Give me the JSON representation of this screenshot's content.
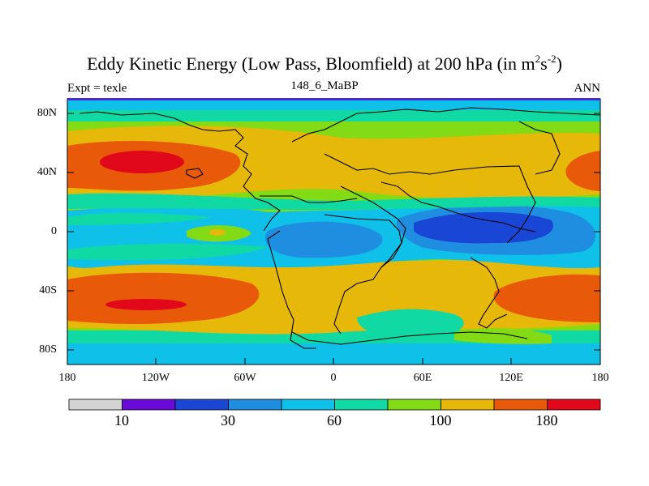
{
  "title": {
    "main": "Eddy Kinetic Energy (Low Pass, Bloomfield) at 200 hPa (in m",
    "sup1": "2",
    "mid": "s",
    "sup2": "-2",
    "close": ")"
  },
  "subtitle": {
    "left": "Expt = texle",
    "center": "148_6_MaBP",
    "right": "ANN"
  },
  "axes": {
    "y_ticks": [
      "80N",
      "40N",
      "0",
      "40S",
      "80S"
    ],
    "x_ticks": [
      "180",
      "120W",
      "60W",
      "0",
      "60E",
      "120E",
      "180"
    ]
  },
  "colorbar": {
    "colors": [
      "#d4d4d4",
      "#6a0ad8",
      "#1a46d6",
      "#1f8ee0",
      "#0fc0e8",
      "#10d9a4",
      "#82db14",
      "#e6b80a",
      "#e85a0a",
      "#e0081a"
    ],
    "labels": [
      "10",
      "30",
      "60",
      "100",
      "180"
    ]
  },
  "colors": {
    "frame": "#000000",
    "top_band": "#4a2ad8"
  }
}
